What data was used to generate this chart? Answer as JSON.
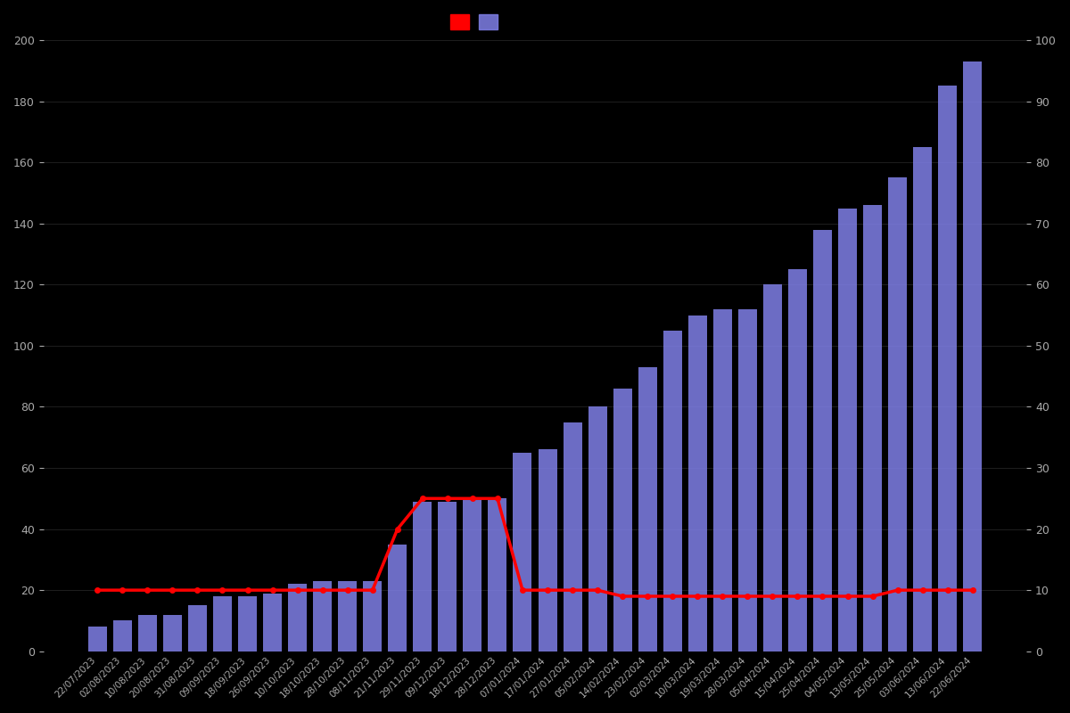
{
  "dates": [
    "22/07/2023",
    "02/08/2023",
    "10/08/2023",
    "20/08/2023",
    "31/08/2023",
    "09/09/2023",
    "18/09/2023",
    "26/09/2023",
    "10/10/2023",
    "18/10/2023",
    "28/10/2023",
    "08/11/2023",
    "21/11/2023",
    "29/11/2023",
    "09/12/2023",
    "18/12/2023",
    "28/12/2023",
    "07/01/2024",
    "17/01/2024",
    "27/01/2024",
    "05/02/2024",
    "14/02/2024",
    "23/02/2024",
    "02/03/2024",
    "10/03/2024",
    "19/03/2024",
    "28/03/2024",
    "05/04/2024",
    "15/04/2024",
    "25/04/2024",
    "04/05/2024",
    "13/05/2024",
    "25/05/2024",
    "03/06/2024",
    "13/06/2024",
    "22/06/2024"
  ],
  "bar_values": [
    8,
    10,
    12,
    12,
    15,
    18,
    18,
    19,
    22,
    23,
    23,
    23,
    35,
    49,
    49,
    50,
    50,
    65,
    66,
    75,
    80,
    86,
    93,
    105,
    110,
    112,
    112,
    120,
    125,
    138,
    145,
    146,
    155,
    165,
    185,
    193
  ],
  "line_values": [
    10,
    10,
    10,
    10,
    10,
    10,
    10,
    10,
    10,
    10,
    10,
    10,
    20,
    25,
    25,
    25,
    25,
    10,
    10,
    10,
    10,
    9,
    9,
    9,
    9,
    9,
    9,
    9,
    9,
    9,
    9,
    9,
    10,
    10,
    10,
    10
  ],
  "bar_color": "#8080e8",
  "line_color": "#ff0000",
  "background_color": "#000000",
  "text_color": "#aaaaaa",
  "ylim_left": [
    0,
    200
  ],
  "ylim_right": [
    0,
    100
  ],
  "yticks_left": [
    0,
    20,
    40,
    60,
    80,
    100,
    120,
    140,
    160,
    180,
    200
  ],
  "yticks_right": [
    0,
    10,
    20,
    30,
    40,
    50,
    60,
    70,
    80,
    90,
    100
  ],
  "grid_color": "#2a2a2a",
  "figsize": [
    12.0,
    8.0
  ],
  "dpi": 100
}
